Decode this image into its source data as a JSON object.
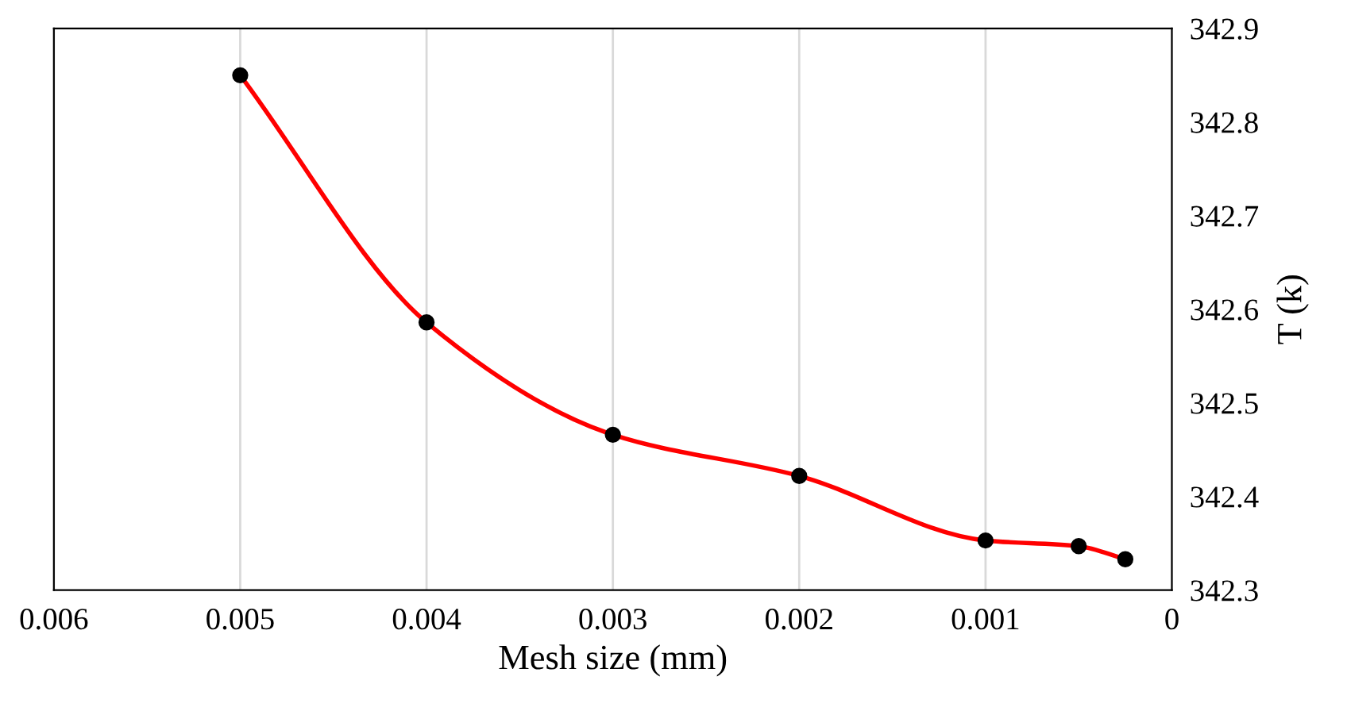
{
  "chart_data": {
    "type": "line",
    "xlabel": "Mesh size (mm)",
    "ylabel": "T (k)",
    "xlim": [
      0.006,
      0
    ],
    "xticks": [
      {
        "value": 0.006,
        "label": "0.006"
      },
      {
        "value": 0.005,
        "label": "0.005"
      },
      {
        "value": 0.004,
        "label": "0.004"
      },
      {
        "value": 0.003,
        "label": "0.003"
      },
      {
        "value": 0.002,
        "label": "0.002"
      },
      {
        "value": 0.001,
        "label": "0.001"
      },
      {
        "value": 0,
        "label": "0"
      }
    ],
    "ylim": [
      342.3,
      342.9
    ],
    "yticks": [
      342.3,
      342.4,
      342.5,
      342.6,
      342.7,
      342.8,
      342.9
    ],
    "grid": "x",
    "legend": false,
    "series": [
      {
        "color": "#ff0000",
        "marker": "none",
        "x": [
          0.005,
          0.004,
          0.003,
          0.002,
          0.001,
          0.0005,
          0.00025
        ],
        "values": [
          342.85,
          342.586,
          342.466,
          342.422,
          342.353,
          342.347,
          342.333
        ]
      },
      {
        "type": "scatter",
        "color": "#000000",
        "marker": "circle",
        "x": [
          0.005,
          0.004,
          0.003,
          0.002,
          0.001,
          0.0005,
          0.00025
        ],
        "values": [
          342.85,
          342.586,
          342.466,
          342.422,
          342.353,
          342.347,
          342.333
        ]
      }
    ]
  }
}
